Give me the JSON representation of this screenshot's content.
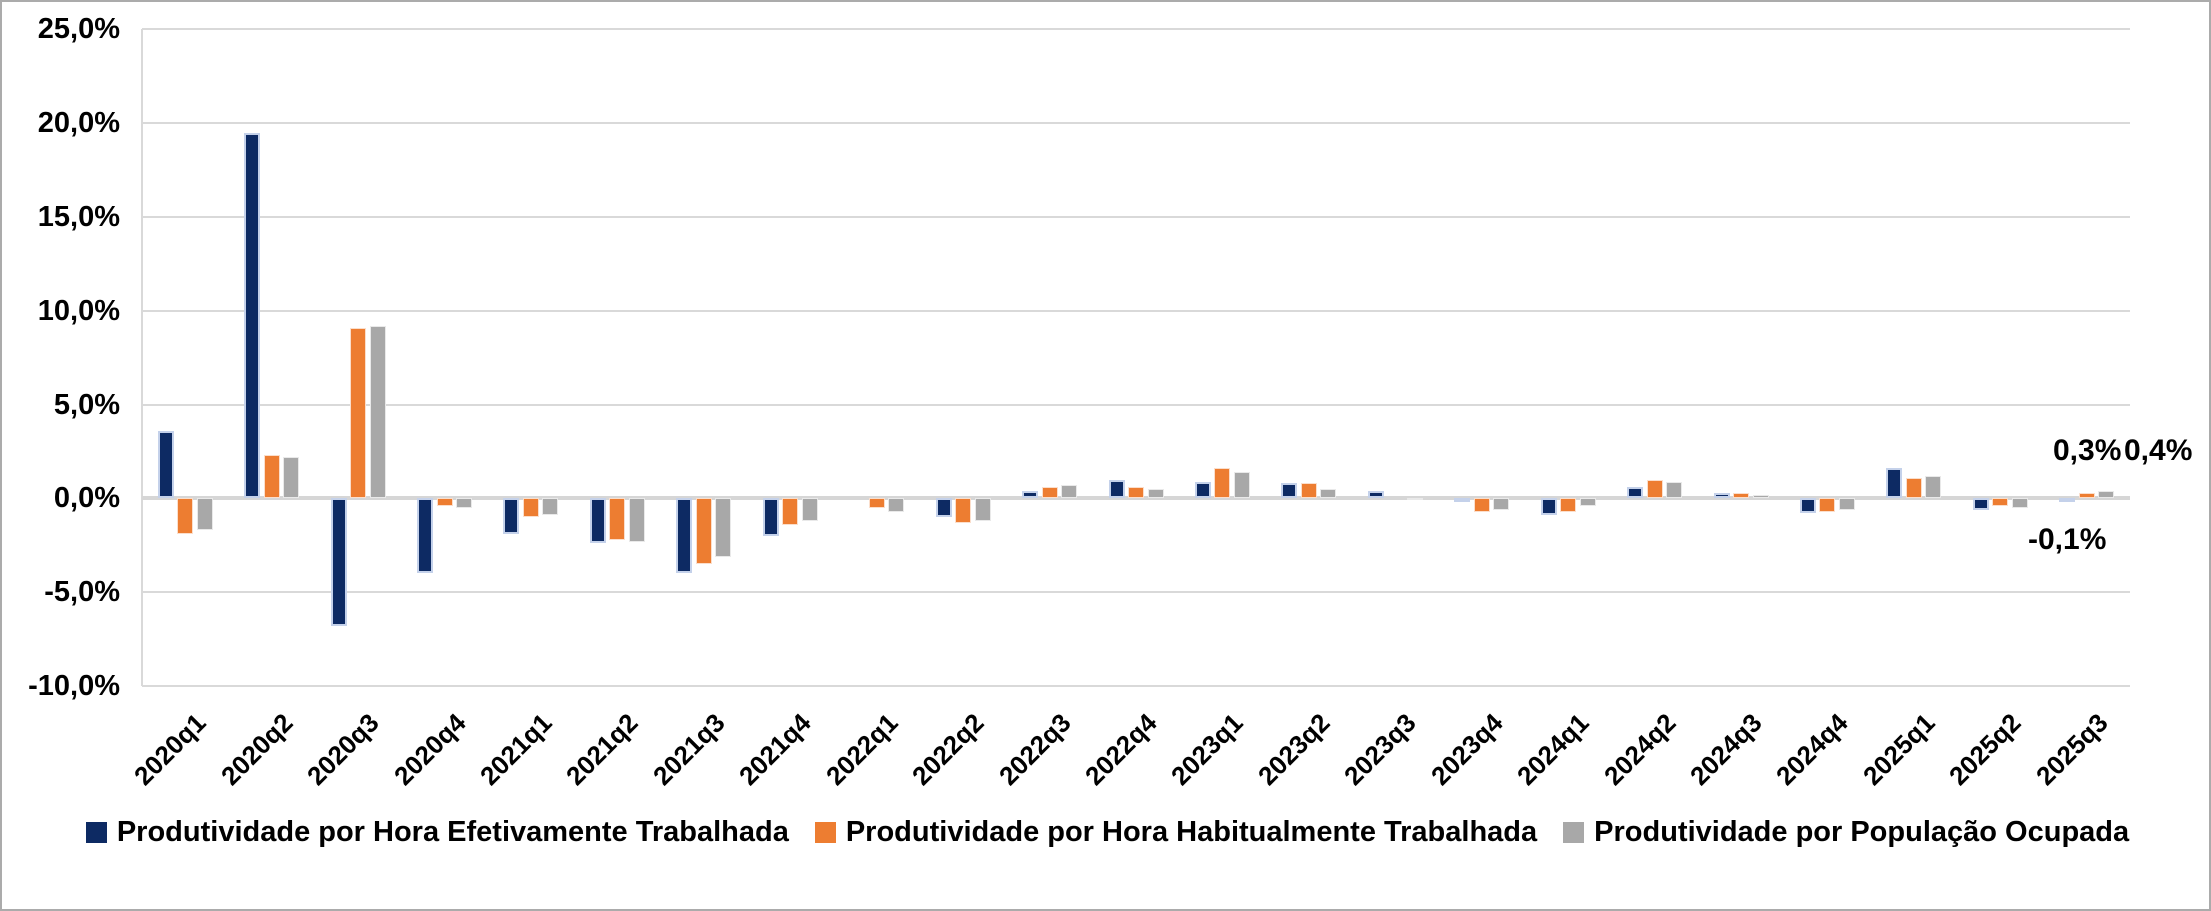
{
  "chart_data": {
    "type": "bar",
    "title": "",
    "xlabel": "",
    "ylabel": "",
    "ylim": [
      -10,
      25
    ],
    "grid": true,
    "legend_position": "bottom",
    "y_ticks": [
      {
        "value": 25,
        "label": "25,0%"
      },
      {
        "value": 20,
        "label": "20,0%"
      },
      {
        "value": 15,
        "label": "15,0%"
      },
      {
        "value": 10,
        "label": "10,0%"
      },
      {
        "value": 5,
        "label": "5,0%"
      },
      {
        "value": 0,
        "label": "0,0%"
      },
      {
        "value": -5,
        "label": "-5,0%"
      },
      {
        "value": -10,
        "label": "-10,0%"
      }
    ],
    "categories": [
      "2020q1",
      "2020q2",
      "2020q3",
      "2020q4",
      "2021q1",
      "2021q2",
      "2021q3",
      "2021q4",
      "2022q1",
      "2022q2",
      "2022q3",
      "2022q4",
      "2023q1",
      "2023q2",
      "2023q3",
      "2023q4",
      "2024q1",
      "2024q2",
      "2024q3",
      "2024q4",
      "2025q1",
      "2025q2",
      "2025q3"
    ],
    "series": [
      {
        "name": "Produtividade por Hora Efetivamente Trabalhada",
        "color": "#0d2a63",
        "values": [
          3.6,
          19.5,
          -6.8,
          -4.0,
          -1.9,
          -2.4,
          -4.0,
          -2.0,
          0.0,
          -1.0,
          0.4,
          1.0,
          0.9,
          0.8,
          0.4,
          -0.2,
          -0.9,
          0.6,
          0.3,
          -0.8,
          1.6,
          -0.6,
          -0.1
        ]
      },
      {
        "name": "Produtividade por Hora Habitualmente Trabalhada",
        "color": "#ed7d31",
        "values": [
          -1.9,
          2.3,
          9.1,
          -0.4,
          -1.0,
          -2.2,
          -3.5,
          -1.4,
          -0.5,
          -1.3,
          0.6,
          0.6,
          1.6,
          0.8,
          0.0,
          -0.7,
          -0.7,
          1.0,
          0.3,
          -0.7,
          1.1,
          -0.4,
          0.3
        ]
      },
      {
        "name": "Produtividade por População Ocupada",
        "color": "#a8a8a8",
        "values": [
          -1.7,
          2.2,
          9.2,
          -0.5,
          -0.9,
          -2.3,
          -3.1,
          -1.2,
          -0.7,
          -1.2,
          0.7,
          0.5,
          1.4,
          0.5,
          -0.1,
          -0.6,
          -0.4,
          0.9,
          0.2,
          -0.6,
          1.2,
          -0.5,
          0.4
        ]
      }
    ],
    "annotations": [
      {
        "text": "0,3%",
        "series": "Produtividade por Hora Habitualmente Trabalhada",
        "category": "2025q3"
      },
      {
        "text": "0,4%",
        "series": "Produtividade por População Ocupada",
        "category": "2025q3"
      },
      {
        "text": "-0,1%",
        "series": "Produtividade por Hora Efetivamente Trabalhada",
        "category": "2025q3"
      }
    ]
  }
}
